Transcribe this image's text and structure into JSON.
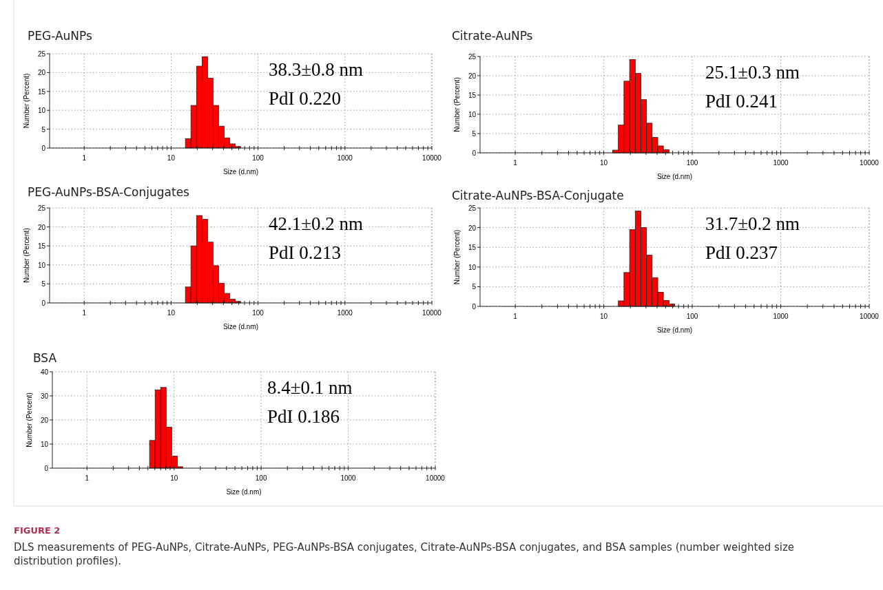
{
  "chart_data": [
    {
      "type": "histogram",
      "title": "PEG-AuNPs",
      "xlabel": "Size (d.nm)",
      "ylabel": "Number (Percent)",
      "log": "x",
      "grid": true,
      "color": "#ff0000",
      "bins": [
        14.6,
        16.9,
        19.6,
        22.7,
        26.3,
        30.4,
        35.2,
        40.8,
        47.2,
        54.7,
        63.3
      ],
      "values": [
        2.5,
        11.3,
        21.7,
        24.2,
        18.5,
        11.3,
        5.8,
        2.7,
        1.1,
        0.4
      ],
      "xlim": [
        0.4,
        10000
      ],
      "xticks": [
        1,
        {
          "value": 2,
          "label": null
        },
        {
          "value": 3,
          "label": null
        },
        {
          "value": 4,
          "label": null
        },
        {
          "value": 5,
          "label": null
        },
        {
          "value": 6,
          "label": null
        },
        {
          "value": 7,
          "label": null
        },
        {
          "value": 8,
          "label": null
        },
        {
          "value": 9,
          "label": null
        },
        10,
        {
          "value": 20,
          "label": null
        },
        {
          "value": 30,
          "label": null
        },
        {
          "value": 40,
          "label": null
        },
        {
          "value": 50,
          "label": null
        },
        {
          "value": 60,
          "label": null
        },
        {
          "value": 70,
          "label": null
        },
        {
          "value": 80,
          "label": null
        },
        {
          "value": 90,
          "label": null
        },
        100,
        {
          "value": 200,
          "label": null
        },
        {
          "value": 300,
          "label": null
        },
        {
          "value": 400,
          "label": null
        },
        {
          "value": 500,
          "label": null
        },
        {
          "value": 600,
          "label": null
        },
        {
          "value": 700,
          "label": null
        },
        {
          "value": 800,
          "label": null
        },
        {
          "value": 900,
          "label": null
        },
        1000,
        {
          "value": 2000,
          "label": null
        },
        {
          "value": 3000,
          "label": null
        },
        {
          "value": 4000,
          "label": null
        },
        {
          "value": 5000,
          "label": null
        },
        {
          "value": 6000,
          "label": null
        },
        {
          "value": 7000,
          "label": null
        },
        {
          "value": 8000,
          "label": null
        },
        {
          "value": 9000,
          "label": null
        },
        10000
      ],
      "ylim": [
        0,
        25
      ],
      "yticks": [
        0,
        5,
        10,
        15,
        20,
        25
      ],
      "annotations": [
        "38.3±0.8 nm",
        "PdI 0.220"
      ]
    },
    {
      "type": "histogram",
      "title": "Citrate-AuNPs",
      "xlabel": "Size (d.nm)",
      "ylabel": "Number (Percent)",
      "log": "x",
      "grid": true,
      "color": "#ff0000",
      "bins": [
        12.6,
        14.6,
        16.9,
        19.6,
        22.7,
        26.3,
        30.4,
        35.2,
        40.8,
        47.2,
        54.7
      ],
      "values": [
        0.7,
        7.2,
        18.6,
        24.2,
        20.6,
        13.8,
        7.7,
        4,
        1.8,
        0.8
      ],
      "xlim": [
        0.4,
        10000
      ],
      "xticks": [
        1,
        {
          "value": 2,
          "label": null
        },
        {
          "value": 3,
          "label": null
        },
        {
          "value": 4,
          "label": null
        },
        {
          "value": 5,
          "label": null
        },
        {
          "value": 6,
          "label": null
        },
        {
          "value": 7,
          "label": null
        },
        {
          "value": 8,
          "label": null
        },
        {
          "value": 9,
          "label": null
        },
        10,
        {
          "value": 20,
          "label": null
        },
        {
          "value": 30,
          "label": null
        },
        {
          "value": 40,
          "label": null
        },
        {
          "value": 50,
          "label": null
        },
        {
          "value": 60,
          "label": null
        },
        {
          "value": 70,
          "label": null
        },
        {
          "value": 80,
          "label": null
        },
        {
          "value": 90,
          "label": null
        },
        100,
        {
          "value": 200,
          "label": null
        },
        {
          "value": 300,
          "label": null
        },
        {
          "value": 400,
          "label": null
        },
        {
          "value": 500,
          "label": null
        },
        {
          "value": 600,
          "label": null
        },
        {
          "value": 700,
          "label": null
        },
        {
          "value": 800,
          "label": null
        },
        {
          "value": 900,
          "label": null
        },
        1000,
        {
          "value": 2000,
          "label": null
        },
        {
          "value": 3000,
          "label": null
        },
        {
          "value": 4000,
          "label": null
        },
        {
          "value": 5000,
          "label": null
        },
        {
          "value": 6000,
          "label": null
        },
        {
          "value": 7000,
          "label": null
        },
        {
          "value": 8000,
          "label": null
        },
        {
          "value": 9000,
          "label": null
        },
        10000
      ],
      "ylim": [
        0,
        25
      ],
      "yticks": [
        0,
        5,
        10,
        15,
        20,
        25
      ],
      "annotations": [
        "25.1±0.3 nm",
        "PdI 0.241"
      ]
    },
    {
      "type": "histogram",
      "title": "PEG-AuNPs-BSA-Conjugates",
      "xlabel": "Size (d.nm)",
      "ylabel": "Number (Percent)",
      "log": "x",
      "grid": true,
      "color": "#ff0000",
      "bins": [
        14.6,
        16.9,
        19.6,
        22.7,
        26.3,
        30.4,
        35.2,
        40.8,
        47.2,
        54.7,
        63.3
      ],
      "values": [
        4.2,
        15,
        23,
        22,
        16,
        9.8,
        5.2,
        2.5,
        1,
        0.4
      ],
      "xlim": [
        0.4,
        10000
      ],
      "xticks": [
        1,
        {
          "value": 2,
          "label": null
        },
        {
          "value": 3,
          "label": null
        },
        {
          "value": 4,
          "label": null
        },
        {
          "value": 5,
          "label": null
        },
        {
          "value": 6,
          "label": null
        },
        {
          "value": 7,
          "label": null
        },
        {
          "value": 8,
          "label": null
        },
        {
          "value": 9,
          "label": null
        },
        10,
        {
          "value": 20,
          "label": null
        },
        {
          "value": 30,
          "label": null
        },
        {
          "value": 40,
          "label": null
        },
        {
          "value": 50,
          "label": null
        },
        {
          "value": 60,
          "label": null
        },
        {
          "value": 70,
          "label": null
        },
        {
          "value": 80,
          "label": null
        },
        {
          "value": 90,
          "label": null
        },
        100,
        {
          "value": 200,
          "label": null
        },
        {
          "value": 300,
          "label": null
        },
        {
          "value": 400,
          "label": null
        },
        {
          "value": 500,
          "label": null
        },
        {
          "value": 600,
          "label": null
        },
        {
          "value": 700,
          "label": null
        },
        {
          "value": 800,
          "label": null
        },
        {
          "value": 900,
          "label": null
        },
        1000,
        {
          "value": 2000,
          "label": null
        },
        {
          "value": 3000,
          "label": null
        },
        {
          "value": 4000,
          "label": null
        },
        {
          "value": 5000,
          "label": null
        },
        {
          "value": 6000,
          "label": null
        },
        {
          "value": 7000,
          "label": null
        },
        {
          "value": 8000,
          "label": null
        },
        {
          "value": 9000,
          "label": null
        },
        10000
      ],
      "ylim": [
        0,
        25
      ],
      "yticks": [
        0,
        5,
        10,
        15,
        20,
        25
      ],
      "annotations": [
        "42.1±0.2 nm",
        "PdI 0.213"
      ]
    },
    {
      "type": "histogram",
      "title": "Citrate-AuNPs-BSA-Conjugate",
      "xlabel": "Size (d.nm)",
      "ylabel": "Number (Percent)",
      "log": "x",
      "grid": true,
      "color": "#ff0000",
      "bins": [
        14.6,
        16.9,
        19.6,
        22.7,
        26.3,
        30.4,
        35.2,
        40.8,
        47.2,
        54.7,
        63.3
      ],
      "values": [
        1.4,
        8.6,
        19.5,
        24.2,
        20,
        13,
        7.3,
        3.6,
        1.5,
        0.6
      ],
      "xlim": [
        0.4,
        10000
      ],
      "xticks": [
        1,
        {
          "value": 2,
          "label": null
        },
        {
          "value": 3,
          "label": null
        },
        {
          "value": 4,
          "label": null
        },
        {
          "value": 5,
          "label": null
        },
        {
          "value": 6,
          "label": null
        },
        {
          "value": 7,
          "label": null
        },
        {
          "value": 8,
          "label": null
        },
        {
          "value": 9,
          "label": null
        },
        10,
        {
          "value": 20,
          "label": null
        },
        {
          "value": 30,
          "label": null
        },
        {
          "value": 40,
          "label": null
        },
        {
          "value": 50,
          "label": null
        },
        {
          "value": 60,
          "label": null
        },
        {
          "value": 70,
          "label": null
        },
        {
          "value": 80,
          "label": null
        },
        {
          "value": 90,
          "label": null
        },
        100,
        {
          "value": 200,
          "label": null
        },
        {
          "value": 300,
          "label": null
        },
        {
          "value": 400,
          "label": null
        },
        {
          "value": 500,
          "label": null
        },
        {
          "value": 600,
          "label": null
        },
        {
          "value": 700,
          "label": null
        },
        {
          "value": 800,
          "label": null
        },
        {
          "value": 900,
          "label": null
        },
        1000,
        {
          "value": 2000,
          "label": null
        },
        {
          "value": 3000,
          "label": null
        },
        {
          "value": 4000,
          "label": null
        },
        {
          "value": 5000,
          "label": null
        },
        {
          "value": 6000,
          "label": null
        },
        {
          "value": 7000,
          "label": null
        },
        {
          "value": 8000,
          "label": null
        },
        {
          "value": 9000,
          "label": null
        },
        10000
      ],
      "ylim": [
        0,
        25
      ],
      "yticks": [
        0,
        5,
        10,
        15,
        20,
        25
      ],
      "annotations": [
        "31.7±0.2 nm",
        "PdI 0.237"
      ]
    },
    {
      "type": "histogram",
      "title": "BSA",
      "xlabel": "Size (d.nm)",
      "ylabel": "Number (Percent)",
      "log": "x",
      "grid": true,
      "color": "#ff0000",
      "bins": [
        5.23,
        6.06,
        7.01,
        8.12,
        9.4,
        10.9,
        12.6
      ],
      "values": [
        11.5,
        32.5,
        33.5,
        17,
        5,
        0.6
      ],
      "xlim": [
        0.4,
        10000
      ],
      "xticks": [
        1,
        {
          "value": 2,
          "label": null
        },
        {
          "value": 3,
          "label": null
        },
        {
          "value": 4,
          "label": null
        },
        {
          "value": 5,
          "label": null
        },
        {
          "value": 6,
          "label": null
        },
        {
          "value": 7,
          "label": null
        },
        {
          "value": 8,
          "label": null
        },
        {
          "value": 9,
          "label": null
        },
        10,
        {
          "value": 20,
          "label": null
        },
        {
          "value": 30,
          "label": null
        },
        {
          "value": 40,
          "label": null
        },
        {
          "value": 50,
          "label": null
        },
        {
          "value": 60,
          "label": null
        },
        {
          "value": 70,
          "label": null
        },
        {
          "value": 80,
          "label": null
        },
        {
          "value": 90,
          "label": null
        },
        100,
        {
          "value": 200,
          "label": null
        },
        {
          "value": 300,
          "label": null
        },
        {
          "value": 400,
          "label": null
        },
        {
          "value": 500,
          "label": null
        },
        {
          "value": 600,
          "label": null
        },
        {
          "value": 700,
          "label": null
        },
        {
          "value": 800,
          "label": null
        },
        {
          "value": 900,
          "label": null
        },
        1000,
        {
          "value": 2000,
          "label": null
        },
        {
          "value": 3000,
          "label": null
        },
        {
          "value": 4000,
          "label": null
        },
        {
          "value": 5000,
          "label": null
        },
        {
          "value": 6000,
          "label": null
        },
        {
          "value": 7000,
          "label": null
        },
        {
          "value": 8000,
          "label": null
        },
        {
          "value": 9000,
          "label": null
        },
        10000
      ],
      "ylim": [
        0,
        40
      ],
      "yticks": [
        0,
        10,
        20,
        30,
        40
      ],
      "annotations": [
        "8.4±0.1 nm",
        "PdI 0.186",
        "FIGURE 2",
        "DLS measurements of PEG-AuNPs, Citrate-AuNPs, PEG-AuNPs-BSA conjugates, Citrate-AuNPs-BSA conjugates, and BSA samples (number weighted size distribution profiles)."
      ]
    }
  ]
}
